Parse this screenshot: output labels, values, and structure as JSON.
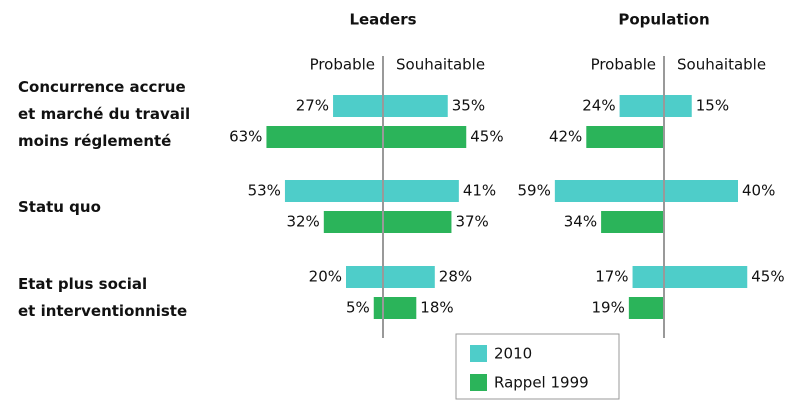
{
  "chart_data": {
    "type": "diverging",
    "categories": [
      "Concurrence accrue\net marché du travail\nmoins réglementé",
      "Statu quo",
      "Etat plus social\net interventionniste"
    ],
    "directions": [
      "Probable",
      "Souhaitable"
    ],
    "series": [
      {
        "name": "2010",
        "color": "#4ecdc9"
      },
      {
        "name": "Rappel 1999",
        "color": "#2bb45a"
      }
    ],
    "panels": [
      {
        "title": "Leaders",
        "series": [
          {
            "probable": [
              27,
              53,
              20
            ],
            "probable_labels": [
              "27%",
              "53%",
              "20%"
            ],
            "souhaitable": [
              35,
              41,
              28
            ],
            "souhaitable_labels": [
              "35%",
              "41%",
              "28%"
            ]
          },
          {
            "probable": [
              63,
              32,
              5
            ],
            "probable_labels": [
              "63%",
              "32%",
              "5%"
            ],
            "souhaitable": [
              45,
              37,
              18
            ],
            "souhaitable_labels": [
              "45%",
              "37%",
              "18%"
            ]
          }
        ]
      },
      {
        "title": "Population",
        "series": [
          {
            "probable": [
              24,
              59,
              17
            ],
            "probable_labels": [
              "24%",
              "59%",
              "17%"
            ],
            "souhaitable": [
              15,
              40,
              45
            ],
            "souhaitable_labels": [
              "15%",
              "40%",
              "45%"
            ]
          },
          {
            "probable": [
              42,
              34,
              19
            ],
            "probable_labels": [
              "42%",
              "34%",
              "19%"
            ],
            "souhaitable": [
              null,
              null,
              null
            ],
            "souhaitable_labels": [
              null,
              null,
              null
            ]
          }
        ]
      }
    ]
  }
}
